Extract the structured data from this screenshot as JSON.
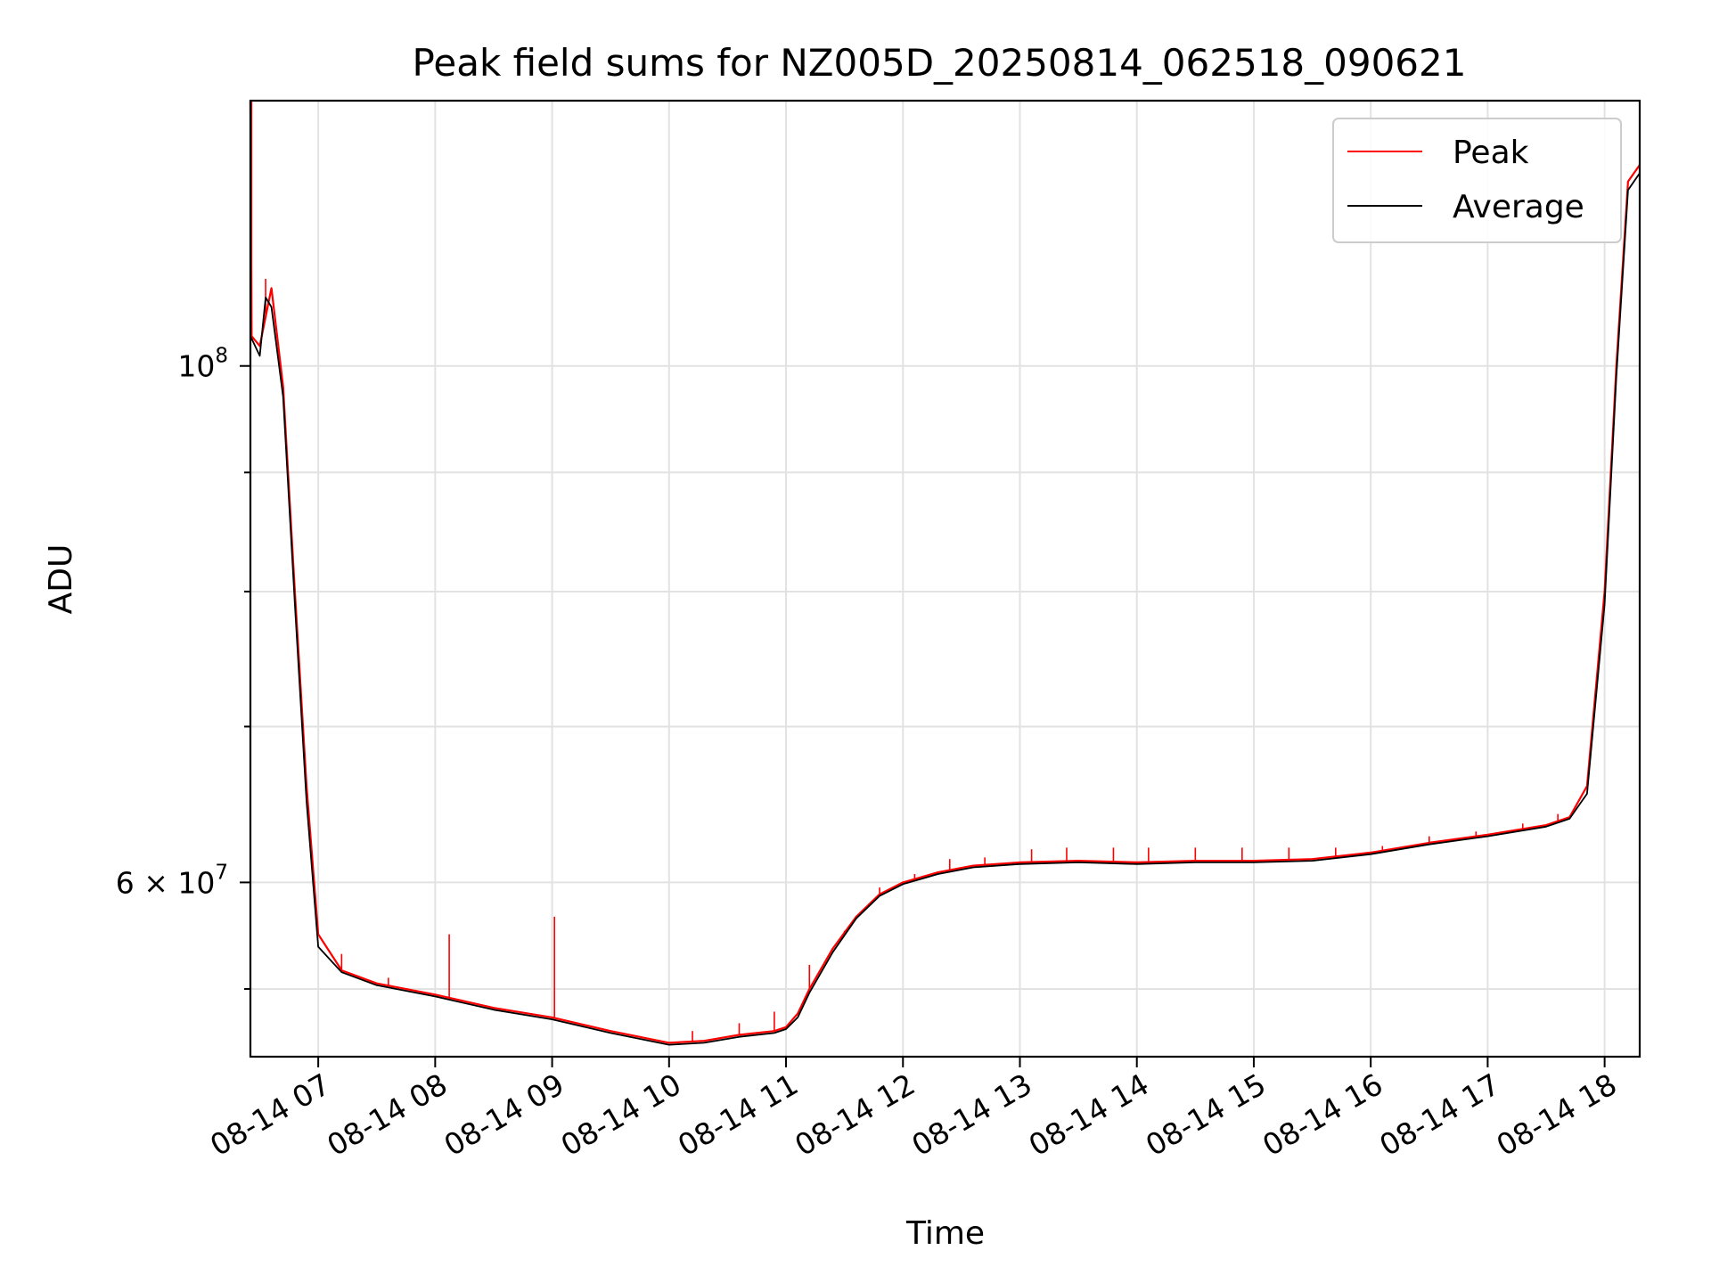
{
  "chart_data": {
    "type": "line",
    "title": "Peak field sums for NZ005D_20250814_062518_090621",
    "xlabel": "Time",
    "ylabel": "ADU",
    "yscale": "log",
    "xlim": [
      6.42,
      18.3
    ],
    "ylim": [
      50500000,
      130000000
    ],
    "grid": true,
    "legend_position": "upper right",
    "x_ticks": [
      {
        "value": 7,
        "label": "08-14 07"
      },
      {
        "value": 8,
        "label": "08-14 08"
      },
      {
        "value": 9,
        "label": "08-14 09"
      },
      {
        "value": 10,
        "label": "08-14 10"
      },
      {
        "value": 11,
        "label": "08-14 11"
      },
      {
        "value": 12,
        "label": "08-14 12"
      },
      {
        "value": 13,
        "label": "08-14 13"
      },
      {
        "value": 14,
        "label": "08-14 14"
      },
      {
        "value": 15,
        "label": "08-14 15"
      },
      {
        "value": 16,
        "label": "08-14 16"
      },
      {
        "value": 17,
        "label": "08-14 17"
      },
      {
        "value": 18,
        "label": "08-14 18"
      }
    ],
    "y_ticks_major": [
      {
        "value": 60000000,
        "base": "6 × 10",
        "exp": "7"
      },
      {
        "value": 100000000,
        "base": "10",
        "exp": "8"
      }
    ],
    "y_ticks_minor": [
      54000000,
      70000000,
      80000000,
      90000000
    ],
    "series": [
      {
        "name": "Peak",
        "color": "#ff0000",
        "x": [
          6.42,
          6.43,
          6.5,
          6.6,
          6.7,
          6.8,
          6.9,
          7.0,
          7.2,
          7.5,
          8.0,
          8.5,
          9.0,
          9.5,
          10.0,
          10.3,
          10.6,
          10.9,
          11.0,
          11.1,
          11.2,
          11.4,
          11.6,
          11.8,
          12.0,
          12.3,
          12.6,
          13.0,
          13.5,
          14.0,
          14.5,
          15.0,
          15.5,
          16.0,
          16.5,
          17.0,
          17.5,
          17.7,
          17.85,
          18.0,
          18.1,
          18.2,
          18.3
        ],
        "y": [
          130000000,
          103000000,
          102000000,
          108000000,
          98000000,
          80000000,
          66000000,
          57000000,
          55000000,
          54300000,
          53700000,
          53000000,
          52500000,
          51800000,
          51200000,
          51300000,
          51600000,
          51800000,
          52000000,
          52700000,
          54000000,
          56200000,
          58000000,
          59300000,
          60000000,
          60600000,
          61000000,
          61200000,
          61300000,
          61200000,
          61300000,
          61300000,
          61400000,
          61800000,
          62400000,
          62900000,
          63500000,
          64000000,
          66000000,
          80000000,
          100000000,
          120000000,
          122000000
        ],
        "spikes": [
          {
            "x": 6.43,
            "y": 130000000
          },
          {
            "x": 6.55,
            "y": 109000000
          },
          {
            "x": 7.2,
            "y": 55900000
          },
          {
            "x": 7.6,
            "y": 54600000
          },
          {
            "x": 8.12,
            "y": 57000000
          },
          {
            "x": 9.02,
            "y": 58000000
          },
          {
            "x": 10.2,
            "y": 51800000
          },
          {
            "x": 10.6,
            "y": 52200000
          },
          {
            "x": 10.9,
            "y": 52800000
          },
          {
            "x": 11.2,
            "y": 55300000
          },
          {
            "x": 11.5,
            "y": 57200000
          },
          {
            "x": 11.8,
            "y": 59700000
          },
          {
            "x": 12.1,
            "y": 60500000
          },
          {
            "x": 12.4,
            "y": 61400000
          },
          {
            "x": 12.7,
            "y": 61500000
          },
          {
            "x": 13.1,
            "y": 62000000
          },
          {
            "x": 13.4,
            "y": 62100000
          },
          {
            "x": 13.8,
            "y": 62100000
          },
          {
            "x": 14.1,
            "y": 62100000
          },
          {
            "x": 14.5,
            "y": 62100000
          },
          {
            "x": 14.9,
            "y": 62100000
          },
          {
            "x": 15.3,
            "y": 62100000
          },
          {
            "x": 15.7,
            "y": 62100000
          },
          {
            "x": 16.1,
            "y": 62200000
          },
          {
            "x": 16.5,
            "y": 62800000
          },
          {
            "x": 16.9,
            "y": 63100000
          },
          {
            "x": 17.3,
            "y": 63600000
          },
          {
            "x": 17.6,
            "y": 64200000
          }
        ]
      },
      {
        "name": "Average",
        "color": "#000000",
        "x": [
          6.42,
          6.5,
          6.55,
          6.6,
          6.7,
          6.8,
          6.9,
          7.0,
          7.2,
          7.5,
          8.0,
          8.5,
          9.0,
          9.5,
          10.0,
          10.3,
          10.6,
          10.9,
          11.0,
          11.1,
          11.2,
          11.4,
          11.6,
          11.8,
          12.0,
          12.3,
          12.6,
          13.0,
          13.5,
          14.0,
          14.5,
          15.0,
          15.5,
          16.0,
          16.5,
          17.0,
          17.5,
          17.7,
          17.85,
          18.0,
          18.1,
          18.2,
          18.3
        ],
        "y": [
          103000000,
          101000000,
          107000000,
          106000000,
          97000000,
          79000000,
          65000000,
          56300000,
          54900000,
          54200000,
          53600000,
          52900000,
          52400000,
          51700000,
          51100000,
          51200000,
          51500000,
          51700000,
          51900000,
          52500000,
          53800000,
          56000000,
          57900000,
          59200000,
          59900000,
          60500000,
          60900000,
          61100000,
          61200000,
          61100000,
          61200000,
          61200000,
          61300000,
          61700000,
          62300000,
          62800000,
          63400000,
          63900000,
          65500000,
          79000000,
          99000000,
          119000000,
          121000000
        ]
      }
    ]
  }
}
